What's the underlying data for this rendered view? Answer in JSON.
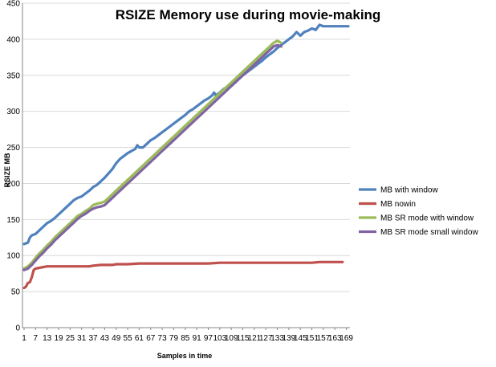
{
  "chart_data": {
    "type": "line",
    "title": "RSIZE Memory use during movie-making",
    "xlabel": "Samples in time",
    "ylabel": "RSIZE MB",
    "ylim": [
      0,
      450
    ],
    "y_ticks": [
      0,
      50,
      100,
      150,
      200,
      250,
      300,
      350,
      400,
      450
    ],
    "x_range": [
      1,
      170
    ],
    "x_ticks": [
      1,
      7,
      13,
      19,
      25,
      31,
      37,
      43,
      49,
      55,
      61,
      67,
      73,
      79,
      85,
      91,
      97,
      103,
      109,
      115,
      121,
      127,
      133,
      139,
      145,
      151,
      157,
      163,
      169
    ],
    "grid": "horizontal",
    "legend_position": "right",
    "series": [
      {
        "name": "MB with window",
        "color": "#4f81bd",
        "points": [
          [
            1,
            116
          ],
          [
            3,
            118
          ],
          [
            4,
            125
          ],
          [
            5,
            128
          ],
          [
            7,
            130
          ],
          [
            9,
            135
          ],
          [
            11,
            140
          ],
          [
            13,
            145
          ],
          [
            15,
            148
          ],
          [
            17,
            152
          ],
          [
            19,
            157
          ],
          [
            21,
            162
          ],
          [
            23,
            167
          ],
          [
            25,
            172
          ],
          [
            27,
            177
          ],
          [
            29,
            180
          ],
          [
            31,
            182
          ],
          [
            33,
            186
          ],
          [
            35,
            190
          ],
          [
            37,
            195
          ],
          [
            39,
            198
          ],
          [
            41,
            203
          ],
          [
            43,
            208
          ],
          [
            45,
            214
          ],
          [
            47,
            220
          ],
          [
            49,
            228
          ],
          [
            51,
            234
          ],
          [
            53,
            238
          ],
          [
            55,
            242
          ],
          [
            57,
            245
          ],
          [
            59,
            248
          ],
          [
            60,
            253
          ],
          [
            61,
            250
          ],
          [
            63,
            250
          ],
          [
            65,
            255
          ],
          [
            67,
            260
          ],
          [
            69,
            263
          ],
          [
            71,
            267
          ],
          [
            73,
            271
          ],
          [
            75,
            275
          ],
          [
            77,
            279
          ],
          [
            79,
            283
          ],
          [
            81,
            287
          ],
          [
            83,
            291
          ],
          [
            85,
            295
          ],
          [
            87,
            300
          ],
          [
            89,
            303
          ],
          [
            91,
            307
          ],
          [
            93,
            311
          ],
          [
            95,
            315
          ],
          [
            97,
            318
          ],
          [
            99,
            322
          ],
          [
            100,
            326
          ],
          [
            101,
            322
          ],
          [
            103,
            326
          ],
          [
            105,
            331
          ],
          [
            107,
            334
          ],
          [
            109,
            337
          ],
          [
            111,
            341
          ],
          [
            113,
            345
          ],
          [
            115,
            350
          ],
          [
            117,
            354
          ],
          [
            119,
            358
          ],
          [
            121,
            362
          ],
          [
            123,
            366
          ],
          [
            125,
            370
          ],
          [
            127,
            375
          ],
          [
            129,
            379
          ],
          [
            131,
            383
          ],
          [
            133,
            388
          ],
          [
            135,
            392
          ],
          [
            137,
            396
          ],
          [
            139,
            400
          ],
          [
            141,
            404
          ],
          [
            143,
            410
          ],
          [
            145,
            405
          ],
          [
            147,
            410
          ],
          [
            149,
            412
          ],
          [
            151,
            415
          ],
          [
            153,
            413
          ],
          [
            155,
            420
          ],
          [
            157,
            418
          ],
          [
            159,
            418
          ],
          [
            163,
            418
          ],
          [
            167,
            418
          ],
          [
            170,
            418
          ]
        ]
      },
      {
        "name": "MB nowin",
        "color": "#c0504d",
        "points": [
          [
            1,
            55
          ],
          [
            2,
            57
          ],
          [
            3,
            62
          ],
          [
            4,
            63
          ],
          [
            5,
            70
          ],
          [
            6,
            80
          ],
          [
            7,
            82
          ],
          [
            9,
            83
          ],
          [
            11,
            84
          ],
          [
            13,
            85
          ],
          [
            19,
            85
          ],
          [
            25,
            85
          ],
          [
            31,
            85
          ],
          [
            35,
            85
          ],
          [
            37,
            86
          ],
          [
            41,
            87
          ],
          [
            43,
            87
          ],
          [
            47,
            87
          ],
          [
            49,
            88
          ],
          [
            55,
            88
          ],
          [
            61,
            89
          ],
          [
            67,
            89
          ],
          [
            73,
            89
          ],
          [
            79,
            89
          ],
          [
            85,
            89
          ],
          [
            91,
            89
          ],
          [
            97,
            89
          ],
          [
            103,
            90
          ],
          [
            109,
            90
          ],
          [
            115,
            90
          ],
          [
            121,
            90
          ],
          [
            127,
            90
          ],
          [
            133,
            90
          ],
          [
            139,
            90
          ],
          [
            145,
            90
          ],
          [
            151,
            90
          ],
          [
            155,
            91
          ],
          [
            157,
            91
          ],
          [
            163,
            91
          ],
          [
            167,
            91
          ]
        ]
      },
      {
        "name": "MB SR mode with window",
        "color": "#9bbb59",
        "points": [
          [
            1,
            82
          ],
          [
            3,
            85
          ],
          [
            5,
            90
          ],
          [
            7,
            97
          ],
          [
            9,
            103
          ],
          [
            11,
            108
          ],
          [
            13,
            114
          ],
          [
            15,
            119
          ],
          [
            17,
            125
          ],
          [
            19,
            130
          ],
          [
            21,
            135
          ],
          [
            23,
            140
          ],
          [
            25,
            145
          ],
          [
            27,
            150
          ],
          [
            29,
            155
          ],
          [
            31,
            158
          ],
          [
            33,
            162
          ],
          [
            35,
            165
          ],
          [
            37,
            170
          ],
          [
            39,
            172
          ],
          [
            41,
            173
          ],
          [
            43,
            175
          ],
          [
            45,
            180
          ],
          [
            47,
            185
          ],
          [
            49,
            190
          ],
          [
            51,
            195
          ],
          [
            53,
            200
          ],
          [
            55,
            205
          ],
          [
            57,
            210
          ],
          [
            59,
            215
          ],
          [
            61,
            220
          ],
          [
            63,
            225
          ],
          [
            65,
            230
          ],
          [
            67,
            235
          ],
          [
            69,
            240
          ],
          [
            71,
            245
          ],
          [
            73,
            250
          ],
          [
            75,
            255
          ],
          [
            77,
            260
          ],
          [
            79,
            265
          ],
          [
            81,
            270
          ],
          [
            83,
            275
          ],
          [
            85,
            280
          ],
          [
            87,
            285
          ],
          [
            89,
            290
          ],
          [
            91,
            295
          ],
          [
            93,
            300
          ],
          [
            95,
            305
          ],
          [
            97,
            310
          ],
          [
            99,
            315
          ],
          [
            101,
            320
          ],
          [
            103,
            325
          ],
          [
            105,
            330
          ],
          [
            107,
            335
          ],
          [
            109,
            340
          ],
          [
            111,
            345
          ],
          [
            113,
            350
          ],
          [
            115,
            355
          ],
          [
            117,
            360
          ],
          [
            119,
            365
          ],
          [
            121,
            370
          ],
          [
            123,
            375
          ],
          [
            125,
            380
          ],
          [
            127,
            385
          ],
          [
            129,
            390
          ],
          [
            131,
            395
          ],
          [
            133,
            398
          ],
          [
            135,
            395
          ]
        ]
      },
      {
        "name": "MB SR mode small window",
        "color": "#8064a2",
        "points": [
          [
            1,
            80
          ],
          [
            3,
            82
          ],
          [
            5,
            87
          ],
          [
            7,
            93
          ],
          [
            9,
            99
          ],
          [
            11,
            104
          ],
          [
            13,
            110
          ],
          [
            15,
            115
          ],
          [
            17,
            121
          ],
          [
            19,
            126
          ],
          [
            21,
            131
          ],
          [
            23,
            136
          ],
          [
            25,
            141
          ],
          [
            27,
            146
          ],
          [
            29,
            151
          ],
          [
            31,
            155
          ],
          [
            33,
            158
          ],
          [
            35,
            162
          ],
          [
            37,
            165
          ],
          [
            39,
            167
          ],
          [
            41,
            168
          ],
          [
            43,
            170
          ],
          [
            45,
            175
          ],
          [
            47,
            180
          ],
          [
            49,
            185
          ],
          [
            51,
            190
          ],
          [
            53,
            195
          ],
          [
            55,
            200
          ],
          [
            57,
            205
          ],
          [
            59,
            210
          ],
          [
            61,
            215
          ],
          [
            63,
            220
          ],
          [
            65,
            225
          ],
          [
            67,
            230
          ],
          [
            69,
            235
          ],
          [
            71,
            240
          ],
          [
            73,
            245
          ],
          [
            75,
            250
          ],
          [
            77,
            255
          ],
          [
            79,
            260
          ],
          [
            81,
            265
          ],
          [
            83,
            270
          ],
          [
            85,
            275
          ],
          [
            87,
            280
          ],
          [
            89,
            285
          ],
          [
            91,
            290
          ],
          [
            93,
            295
          ],
          [
            95,
            300
          ],
          [
            97,
            305
          ],
          [
            99,
            310
          ],
          [
            101,
            315
          ],
          [
            103,
            320
          ],
          [
            105,
            325
          ],
          [
            107,
            330
          ],
          [
            109,
            335
          ],
          [
            111,
            340
          ],
          [
            113,
            345
          ],
          [
            115,
            350
          ],
          [
            117,
            355
          ],
          [
            119,
            360
          ],
          [
            121,
            365
          ],
          [
            123,
            370
          ],
          [
            125,
            375
          ],
          [
            127,
            380
          ],
          [
            129,
            385
          ],
          [
            131,
            390
          ],
          [
            133,
            392
          ],
          [
            135,
            390
          ]
        ]
      }
    ]
  }
}
